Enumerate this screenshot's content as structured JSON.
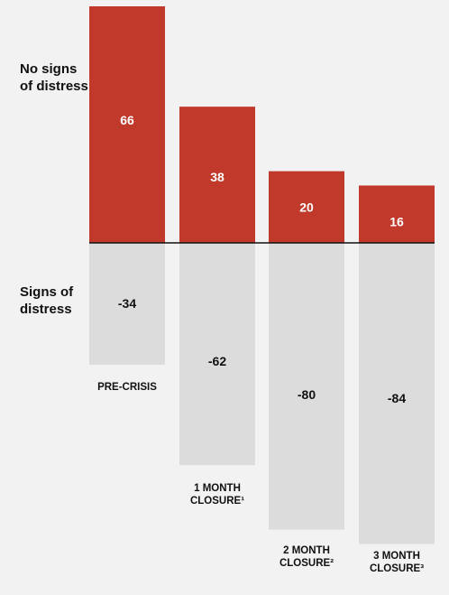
{
  "labels": {
    "positive": "No signs of distress",
    "negative": "Signs of distress"
  },
  "colors": {
    "positive": "#c0392b",
    "negative": "#dcdcdc",
    "background": "#f2f2f2",
    "axis": "#111111"
  },
  "chart_data": {
    "type": "bar",
    "stacked": "diverging",
    "title": "",
    "xlabel": "",
    "ylabel": "",
    "categories": [
      "PRE-CRISIS",
      "1 MONTH CLOSURE¹",
      "2 MONTH CLOSURE²",
      "3 MONTH CLOSURE³"
    ],
    "series": [
      {
        "name": "No signs of distress",
        "values": [
          66,
          38,
          20,
          16
        ],
        "labels": [
          "66",
          "38",
          "20",
          "16"
        ]
      },
      {
        "name": "Signs of distress",
        "values": [
          -34,
          -62,
          -80,
          -84
        ],
        "labels": [
          "-34",
          "-62",
          "-80",
          "-84"
        ]
      }
    ],
    "ylim": [
      -84,
      66
    ],
    "grid": false,
    "legend": "none"
  }
}
